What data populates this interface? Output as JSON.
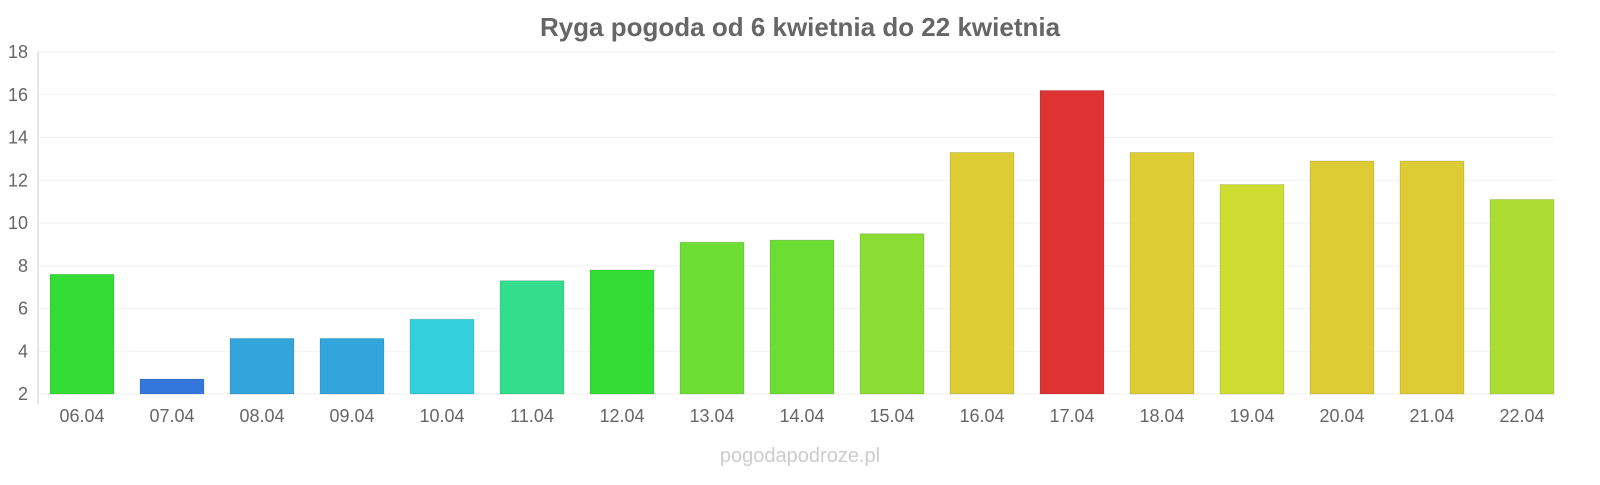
{
  "chart_data": {
    "type": "bar",
    "title": "Ryga pogoda od 6 kwietnia do 22 kwietnia",
    "xlabel": "",
    "ylabel": "",
    "ylim": [
      2,
      18
    ],
    "yticks": [
      2,
      4,
      6,
      8,
      10,
      12,
      14,
      16,
      18
    ],
    "grid": true,
    "categories": [
      "06.04",
      "07.04",
      "08.04",
      "09.04",
      "10.04",
      "11.04",
      "12.04",
      "13.04",
      "14.04",
      "15.04",
      "16.04",
      "17.04",
      "18.04",
      "19.04",
      "20.04",
      "21.04",
      "22.04"
    ],
    "values": [
      7.6,
      2.7,
      4.6,
      4.6,
      5.5,
      7.3,
      7.8,
      9.1,
      9.2,
      9.5,
      13.3,
      16.2,
      13.3,
      11.8,
      12.9,
      12.9,
      11.1
    ],
    "colors": [
      "#33dd33",
      "#3377dd",
      "#33a5dd",
      "#33a5dd",
      "#33cfdd",
      "#33dd8c",
      "#33dd33",
      "#6cdd33",
      "#6cdd33",
      "#8cdd33",
      "#ddcc33",
      "#dd3333",
      "#ddcc33",
      "#cfdd33",
      "#ddcc33",
      "#ddcc33",
      "#addd33"
    ]
  },
  "watermark": "pogodapodroze.pl"
}
